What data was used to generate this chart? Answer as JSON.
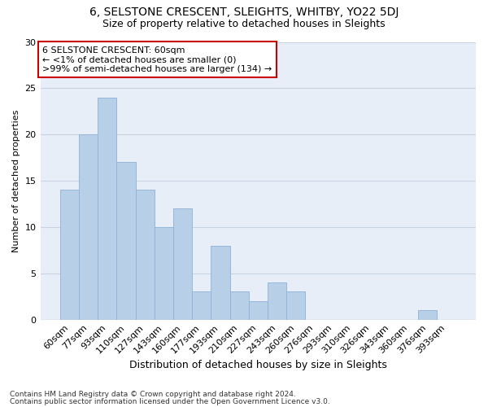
{
  "title1": "6, SELSTONE CRESCENT, SLEIGHTS, WHITBY, YO22 5DJ",
  "title2": "Size of property relative to detached houses in Sleights",
  "xlabel": "Distribution of detached houses by size in Sleights",
  "ylabel": "Number of detached properties",
  "categories": [
    "60sqm",
    "77sqm",
    "93sqm",
    "110sqm",
    "127sqm",
    "143sqm",
    "160sqm",
    "177sqm",
    "193sqm",
    "210sqm",
    "227sqm",
    "243sqm",
    "260sqm",
    "276sqm",
    "293sqm",
    "310sqm",
    "326sqm",
    "343sqm",
    "360sqm",
    "376sqm",
    "393sqm"
  ],
  "values": [
    14,
    20,
    24,
    17,
    14,
    10,
    12,
    3,
    8,
    3,
    2,
    4,
    3,
    0,
    0,
    0,
    0,
    0,
    0,
    1,
    0
  ],
  "bar_color": "#b8cfe8",
  "bar_edge_color": "#8fb0d8",
  "annotation_box_color": "#ffffff",
  "annotation_box_edge": "#cc0000",
  "annotation_text": "6 SELSTONE CRESCENT: 60sqm\n← <1% of detached houses are smaller (0)\n>99% of semi-detached houses are larger (134) →",
  "annotation_fontsize": 8,
  "ylim": [
    0,
    30
  ],
  "yticks": [
    0,
    5,
    10,
    15,
    20,
    25,
    30
  ],
  "grid_color": "#c8d4e4",
  "bg_color": "#e8eef8",
  "footer1": "Contains HM Land Registry data © Crown copyright and database right 2024.",
  "footer2": "Contains public sector information licensed under the Open Government Licence v3.0.",
  "title1_fontsize": 10,
  "title2_fontsize": 9,
  "xlabel_fontsize": 9,
  "ylabel_fontsize": 8,
  "tick_fontsize": 8
}
